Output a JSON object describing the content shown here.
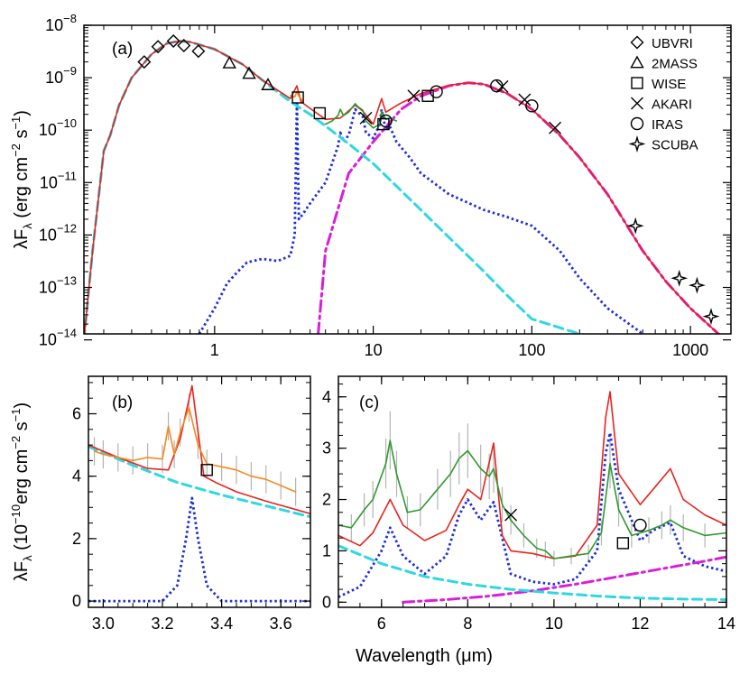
{
  "colors": {
    "model_total": "#e8231e",
    "spectrum_orange": "#f58a1f",
    "spectrum_green": "#2e9a2e",
    "errorbars": "#b4b4b4",
    "stars_cyan": "#2fd8e0",
    "pah_blue": "#1f2fd6",
    "dust_magenta": "#d81fd8",
    "axes": "#000000"
  },
  "chart_data": [
    {
      "type": "line",
      "panel_label": "(a)",
      "xscale": "log",
      "yscale": "log",
      "xlim": [
        0.15,
        1800
      ],
      "ylim": [
        1.3e-14,
        1e-08
      ],
      "ylabel_main": "λF",
      "ylabel_sub": "λ",
      "ylabel_rest": " (erg cm",
      "ylabel_sup1": "−2",
      "ylabel_mid": " s",
      "ylabel_sup2": "−1",
      "ylabel_end": ")",
      "xticks": [
        {
          "value": 1,
          "label": "1"
        },
        {
          "value": 10,
          "label": "10"
        },
        {
          "value": 100,
          "label": "100"
        },
        {
          "value": 1000,
          "label": "1000"
        }
      ],
      "yticks": [
        {
          "value": 1e-08,
          "base": "10",
          "exp": "−8"
        },
        {
          "value": 1e-09,
          "base": "10",
          "exp": "−9"
        },
        {
          "value": 1e-10,
          "base": "10",
          "exp": "−10"
        },
        {
          "value": 1e-11,
          "base": "10",
          "exp": "−11"
        },
        {
          "value": 1e-12,
          "base": "10",
          "exp": "−12"
        },
        {
          "value": 1e-13,
          "base": "10",
          "exp": "−13"
        },
        {
          "value": 1e-14,
          "base": "10",
          "exp": "−14"
        }
      ],
      "legend": [
        {
          "marker": "diamond",
          "label": "UBVRI"
        },
        {
          "marker": "triangle",
          "label": "2MASS"
        },
        {
          "marker": "square",
          "label": "WISE"
        },
        {
          "marker": "cross",
          "label": "AKARI"
        },
        {
          "marker": "circle",
          "label": "IRAS"
        },
        {
          "marker": "star",
          "label": "SCUBA"
        }
      ],
      "series": [
        {
          "role": "stars",
          "style": "dashed",
          "color": "stars_cyan",
          "x": [
            0.15,
            0.17,
            0.2,
            0.22,
            0.25,
            0.3,
            0.4,
            0.5,
            0.6,
            0.7,
            1,
            1.5,
            2,
            3,
            4,
            5,
            7,
            10,
            15,
            20,
            30,
            50,
            70,
            100,
            200
          ],
          "y": [
            1e-14,
            5e-13,
            4e-11,
            8e-11,
            3e-10,
            1e-09,
            2.8e-09,
            4.5e-09,
            5e-09,
            4.8e-09,
            3.5e-09,
            1.8e-09,
            9e-10,
            3.5e-10,
            2e-10,
            1.2e-10,
            5.5e-11,
            2.3e-11,
            7e-12,
            3e-12,
            9e-13,
            2e-13,
            7e-14,
            2.5e-14,
            1.3e-14
          ]
        },
        {
          "role": "pah",
          "style": "dotted",
          "color": "pah_blue",
          "x": [
            0.8,
            1,
            1.2,
            1.4,
            1.6,
            2,
            2.5,
            3,
            3.2,
            3.3,
            3.4,
            3.6,
            4,
            5,
            6,
            6.2,
            6.5,
            7,
            7.7,
            8,
            8.6,
            9,
            10,
            11,
            11.3,
            12,
            12.7,
            14,
            17,
            20,
            30,
            50,
            70,
            100,
            150,
            200,
            300,
            500
          ],
          "y": [
            1.3e-14,
            4e-14,
            1.2e-13,
            2e-13,
            3e-13,
            3.5e-13,
            3.2e-13,
            4e-13,
            1e-12,
            3.5e-10,
            2e-12,
            2.5e-12,
            4e-12,
            1e-11,
            5e-11,
            9e-11,
            6e-11,
            8e-11,
            2.5e-10,
            2.2e-10,
            1.8e-10,
            9e-11,
            7e-11,
            1.3e-10,
            2.5e-10,
            1e-10,
            1.2e-10,
            6e-11,
            3e-11,
            1.5e-11,
            6e-12,
            3e-12,
            2.2e-12,
            1.5e-12,
            5e-13,
            1.5e-13,
            4e-14,
            1.3e-14
          ]
        },
        {
          "role": "dust",
          "style": "dashdot",
          "color": "dust_magenta",
          "x": [
            4.5,
            5,
            7,
            10,
            15,
            20,
            30,
            40,
            50,
            70,
            100,
            150,
            200,
            300,
            500,
            700,
            1000,
            1500,
            1800
          ],
          "y": [
            1.3e-14,
            5e-13,
            1.5e-11,
            6e-11,
            2.5e-10,
            4.5e-10,
            7e-10,
            8e-10,
            7.5e-10,
            5e-10,
            2.5e-10,
            8e-11,
            3e-11,
            6e-12,
            5e-13,
            1.3e-13,
            4e-14,
            1.3e-14,
            1e-14
          ]
        },
        {
          "role": "total",
          "style": "solid",
          "color": "model_total",
          "x": [
            0.15,
            0.17,
            0.2,
            0.22,
            0.25,
            0.3,
            0.4,
            0.5,
            0.6,
            0.7,
            1,
            1.5,
            2,
            3,
            3.3,
            3.5,
            4,
            5,
            6.2,
            7.7,
            8.6,
            10,
            11.3,
            12,
            15,
            20,
            30,
            40,
            50,
            70,
            100,
            150,
            200,
            300,
            500,
            700,
            1000,
            1500,
            1800
          ],
          "y": [
            1e-14,
            5e-13,
            4e-11,
            8e-11,
            3e-10,
            1e-09,
            2.8e-09,
            4.5e-09,
            5e-09,
            4.8e-09,
            3.5e-09,
            1.8e-09,
            9e-10,
            4e-10,
            7e-10,
            3.5e-10,
            2.6e-10,
            1.6e-10,
            1.7e-10,
            3e-10,
            2.3e-10,
            1.3e-10,
            4e-10,
            2.2e-10,
            3.3e-10,
            5e-10,
            7.2e-10,
            8e-10,
            7.5e-10,
            5e-10,
            2.5e-10,
            8e-11,
            3e-11,
            6e-12,
            5e-13,
            1.3e-13,
            4e-14,
            1.3e-14,
            1e-14
          ]
        },
        {
          "role": "spectrum",
          "style": "solid",
          "color": "spectrum_green",
          "x": [
            5,
            5.5,
            6,
            6.2,
            6.5,
            7,
            7.7,
            8,
            8.6,
            9,
            10,
            11,
            11.3,
            12,
            12.7,
            14
          ],
          "y": [
            1.3e-10,
            1.5e-10,
            1.9e-10,
            2.5e-10,
            1.9e-10,
            2.2e-10,
            3.2e-10,
            2.8e-10,
            2.4e-10,
            1.5e-10,
            1.1e-10,
            1.3e-10,
            2.3e-10,
            1.6e-10,
            1.7e-10,
            1.5e-10
          ]
        },
        {
          "role": "spectrum",
          "style": "solid",
          "color": "spectrum_orange",
          "x": [
            3,
            3.1,
            3.2,
            3.3,
            3.4,
            3.5,
            3.6
          ],
          "y": [
            4.6e-10,
            4.4e-10,
            4.3e-10,
            5.4e-10,
            4.4e-10,
            4e-10,
            3.5e-10
          ]
        }
      ],
      "photometry": [
        {
          "marker": "diamond",
          "x": [
            0.36,
            0.44,
            0.55,
            0.64,
            0.79
          ],
          "y": [
            2e-09,
            3.9e-09,
            5e-09,
            4.1e-09,
            3.2e-09
          ]
        },
        {
          "marker": "triangle",
          "x": [
            1.24,
            1.65,
            2.17
          ],
          "y": [
            1.9e-09,
            1.2e-09,
            7.3e-10
          ]
        },
        {
          "marker": "square",
          "x": [
            3.35,
            4.6,
            11.6,
            22.1
          ],
          "y": [
            4.2e-10,
            2.1e-10,
            1.3e-10,
            4.5e-10
          ]
        },
        {
          "marker": "cross",
          "x": [
            9,
            18,
            65,
            90,
            140
          ],
          "y": [
            1.7e-10,
            4.5e-10,
            6.8e-10,
            3.8e-10,
            1.1e-10
          ]
        },
        {
          "marker": "circle",
          "x": [
            12,
            25,
            60,
            100
          ],
          "y": [
            1.5e-10,
            5.4e-10,
            7e-10,
            2.9e-10
          ]
        },
        {
          "marker": "star",
          "x": [
            450,
            850,
            1100,
            1350
          ],
          "y": [
            1.5e-12,
            1.5e-13,
            1.1e-13,
            2.8e-14
          ]
        }
      ]
    },
    {
      "type": "line",
      "panel_label": "(b)",
      "xscale": "linear",
      "yscale": "linear",
      "xlim": [
        2.95,
        3.7
      ],
      "ylim": [
        -0.2,
        7.2
      ],
      "ylabel_main": "λF",
      "ylabel_sub": "λ",
      "ylabel_rest": " (10",
      "ylabel_sup1": "−10",
      "ylabel_mid": "erg cm",
      "ylabel_sup2": "−2",
      "ylabel_mid2": " s",
      "ylabel_sup3": "−1",
      "ylabel_end": ")",
      "xticks": [
        {
          "value": 3.0,
          "label": "3.0"
        },
        {
          "value": 3.2,
          "label": "3.2"
        },
        {
          "value": 3.4,
          "label": "3.4"
        },
        {
          "value": 3.6,
          "label": "3.6"
        }
      ],
      "yticks": [
        {
          "value": 0,
          "label": "0"
        },
        {
          "value": 2,
          "label": "2"
        },
        {
          "value": 4,
          "label": "4"
        },
        {
          "value": 6,
          "label": "6"
        }
      ],
      "series": [
        {
          "role": "stars",
          "style": "dashed",
          "color": "stars_cyan",
          "x": [
            2.95,
            3.1,
            3.25,
            3.4,
            3.55,
            3.7
          ],
          "y": [
            4.95,
            4.35,
            3.8,
            3.4,
            3.05,
            2.7
          ]
        },
        {
          "role": "total",
          "style": "solid",
          "color": "model_total",
          "x": [
            2.95,
            3.05,
            3.15,
            3.22,
            3.26,
            3.3,
            3.34,
            3.38,
            3.45,
            3.55,
            3.7
          ],
          "y": [
            5.0,
            4.6,
            4.25,
            4.2,
            5.2,
            6.9,
            4.0,
            3.8,
            3.5,
            3.2,
            2.8
          ]
        },
        {
          "role": "pah",
          "style": "dotted",
          "color": "pah_blue",
          "x": [
            2.95,
            3.2,
            3.25,
            3.28,
            3.3,
            3.32,
            3.35,
            3.4,
            3.7
          ],
          "y": [
            0,
            0,
            0.5,
            2,
            3.3,
            2,
            0.5,
            0,
            0
          ]
        },
        {
          "role": "spectrum",
          "style": "solid",
          "color": "spectrum_orange",
          "x": [
            2.97,
            3.0,
            3.05,
            3.1,
            3.15,
            3.2,
            3.22,
            3.24,
            3.26,
            3.29,
            3.32,
            3.35,
            3.4,
            3.45,
            3.5,
            3.55,
            3.6,
            3.65
          ],
          "y": [
            4.8,
            4.7,
            4.6,
            4.5,
            4.6,
            4.55,
            5.6,
            4.7,
            5.4,
            6.2,
            5.0,
            4.4,
            4.3,
            4.2,
            4.0,
            3.9,
            3.7,
            3.5
          ]
        }
      ],
      "photometry": [
        {
          "marker": "square",
          "x": [
            3.35
          ],
          "y": [
            4.2
          ]
        }
      ]
    },
    {
      "type": "line",
      "panel_label": "(c)",
      "xscale": "linear",
      "yscale": "linear",
      "xlim": [
        5,
        14
      ],
      "ylim": [
        -0.1,
        4.4
      ],
      "xlabel": "Wavelength (μm)",
      "xticks": [
        {
          "value": 6,
          "label": "6"
        },
        {
          "value": 8,
          "label": "8"
        },
        {
          "value": 10,
          "label": "10"
        },
        {
          "value": 12,
          "label": "12"
        },
        {
          "value": 14,
          "label": "14"
        }
      ],
      "yticks": [
        {
          "value": 0,
          "label": "0"
        },
        {
          "value": 1,
          "label": "1"
        },
        {
          "value": 2,
          "label": "2"
        },
        {
          "value": 3,
          "label": "3"
        },
        {
          "value": 4,
          "label": "4"
        }
      ],
      "series": [
        {
          "role": "stars",
          "style": "dashed",
          "color": "stars_cyan",
          "x": [
            5,
            6,
            7,
            8,
            9,
            10,
            11,
            12,
            13,
            14
          ],
          "y": [
            1.1,
            0.75,
            0.5,
            0.35,
            0.25,
            0.18,
            0.12,
            0.08,
            0.06,
            0.05
          ]
        },
        {
          "role": "dust",
          "style": "dashdot",
          "color": "dust_magenta",
          "x": [
            6.5,
            7.5,
            8.5,
            9.5,
            10.5,
            11.5,
            12.5,
            13.5,
            14
          ],
          "y": [
            0,
            0.05,
            0.12,
            0.22,
            0.35,
            0.5,
            0.65,
            0.8,
            0.88
          ]
        },
        {
          "role": "pah",
          "style": "dotted",
          "color": "pah_blue",
          "x": [
            5,
            5.5,
            6,
            6.2,
            6.5,
            7,
            7.5,
            7.8,
            8,
            8.3,
            8.6,
            9,
            9.5,
            10,
            10.5,
            11,
            11.2,
            11.3,
            11.5,
            12,
            12.3,
            12.7,
            13,
            13.5,
            14
          ],
          "y": [
            0.1,
            0.3,
            1.0,
            1.45,
            0.9,
            0.55,
            0.9,
            1.7,
            2.0,
            1.6,
            1.95,
            0.55,
            0.4,
            0.35,
            0.45,
            1.0,
            2.9,
            3.3,
            2.2,
            1.2,
            1.4,
            1.55,
            0.9,
            0.7,
            0.6
          ]
        },
        {
          "role": "total",
          "style": "solid",
          "color": "model_total",
          "x": [
            5,
            5.5,
            5.8,
            6.2,
            6.5,
            7,
            7.5,
            7.8,
            8,
            8.3,
            8.6,
            8.8,
            9,
            9.5,
            10,
            10.5,
            11,
            11.2,
            11.3,
            11.5,
            12,
            12.3,
            12.7,
            13,
            13.5,
            14
          ],
          "y": [
            1.3,
            1.1,
            1.35,
            2.0,
            1.5,
            1.2,
            1.4,
            1.9,
            2.2,
            2.0,
            3.1,
            1.3,
            1.0,
            0.95,
            0.85,
            0.9,
            1.5,
            3.6,
            4.1,
            2.5,
            1.9,
            2.2,
            2.6,
            2.0,
            1.7,
            1.5
          ]
        },
        {
          "role": "spectrum",
          "style": "solid",
          "color": "spectrum_green",
          "x": [
            5,
            5.3,
            5.6,
            5.8,
            6.1,
            6.2,
            6.35,
            6.6,
            6.9,
            7.3,
            7.6,
            7.8,
            8.0,
            8.3,
            8.5,
            8.6,
            8.8,
            9.0,
            9.3,
            9.6,
            9.8,
            10.0,
            10.4,
            10.8,
            11.1,
            11.3,
            11.5,
            11.8,
            12.2,
            12.5,
            12.7,
            13.0,
            13.5,
            14
          ],
          "y": [
            1.5,
            1.45,
            1.8,
            2.0,
            2.7,
            3.15,
            2.5,
            1.75,
            1.8,
            2.2,
            2.5,
            2.8,
            2.95,
            2.6,
            2.45,
            2.6,
            1.9,
            1.6,
            1.3,
            1.05,
            1.0,
            0.85,
            0.9,
            0.95,
            1.35,
            2.7,
            1.8,
            1.3,
            1.4,
            1.5,
            1.6,
            1.45,
            1.3,
            1.35
          ]
        }
      ],
      "photometry": [
        {
          "marker": "cross",
          "x": [
            9.0
          ],
          "y": [
            1.7
          ]
        },
        {
          "marker": "square",
          "x": [
            11.6
          ],
          "y": [
            1.15
          ]
        },
        {
          "marker": "circle",
          "x": [
            12.0
          ],
          "y": [
            1.5
          ]
        }
      ]
    }
  ]
}
